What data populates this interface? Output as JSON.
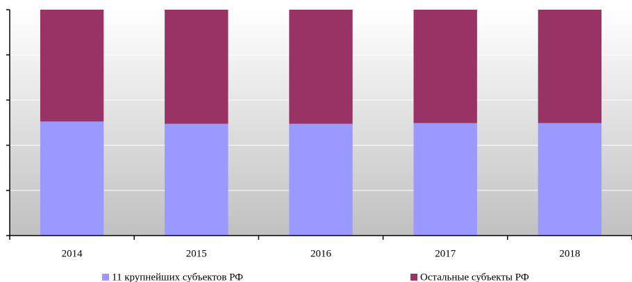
{
  "chart_data": {
    "type": "bar",
    "stacked": true,
    "categories": [
      "2014",
      "2015",
      "2016",
      "2017",
      "2018"
    ],
    "series": [
      {
        "name": "11 крупнейших субъектов РФ",
        "color": "#9999ff",
        "values": [
          50.5,
          49.5,
          49.5,
          49.8,
          49.8
        ]
      },
      {
        "name": "Остальные субъекты РФ",
        "color": "#993366",
        "values": [
          49.5,
          50.5,
          50.5,
          50.2,
          50.2
        ]
      }
    ],
    "ylim": [
      0,
      100
    ],
    "yticks": [
      0,
      20,
      40,
      60,
      80,
      100
    ],
    "grid": true,
    "legend": "bottom"
  }
}
